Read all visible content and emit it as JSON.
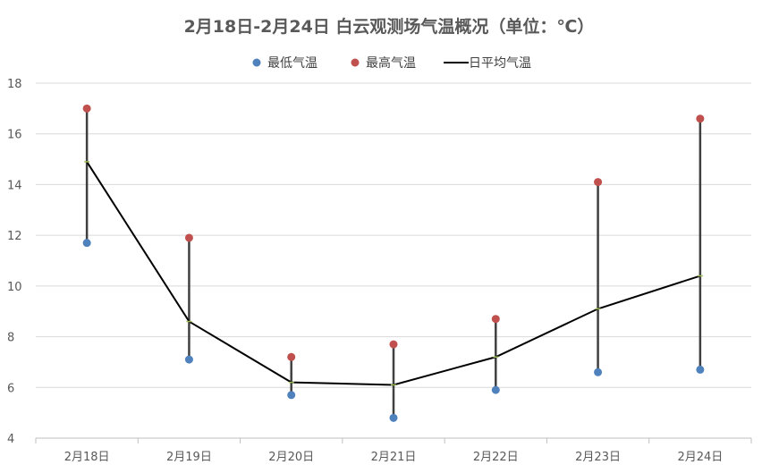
{
  "chart_data": {
    "type": "line",
    "title": "2月18日-2月24日 白云观测场气温概况（单位：℃）",
    "xlabel": "",
    "ylabel": "",
    "categories": [
      "2月18日",
      "2月19日",
      "2月20日",
      "2月21日",
      "2月22日",
      "2月23日",
      "2月24日"
    ],
    "ylim": [
      4,
      18
    ],
    "yticks": [
      4,
      6,
      8,
      10,
      12,
      14,
      16,
      18
    ],
    "grid": true,
    "legend_position": "top",
    "series": [
      {
        "name": "最低气温",
        "kind": "scatter",
        "color": "#4f81bd",
        "values": [
          11.7,
          7.1,
          5.7,
          4.8,
          5.9,
          6.6,
          6.7
        ]
      },
      {
        "name": "最高气温",
        "kind": "scatter",
        "color": "#c0504d",
        "values": [
          17.0,
          11.9,
          7.2,
          7.7,
          8.7,
          14.1,
          16.6
        ]
      },
      {
        "name": "日平均气温",
        "kind": "line",
        "color": "#000000",
        "values": [
          14.9,
          8.6,
          6.2,
          6.1,
          7.2,
          9.1,
          10.4
        ]
      }
    ],
    "range_bar_color": "#404040"
  }
}
